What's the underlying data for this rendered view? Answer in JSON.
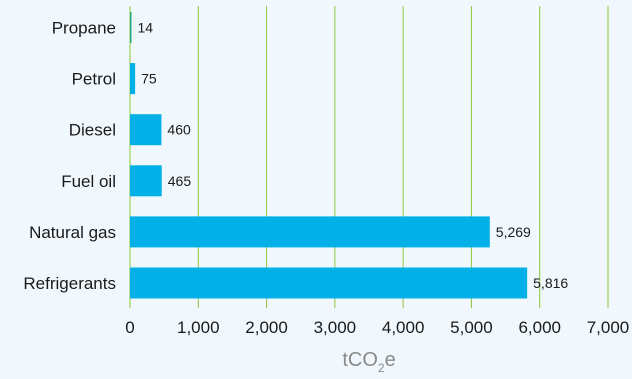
{
  "chart_data": {
    "type": "bar",
    "orientation": "horizontal",
    "categories": [
      "Propane",
      "Petrol",
      "Diesel",
      "Fuel oil",
      "Natural gas",
      "Refrigerants"
    ],
    "values": [
      14,
      75,
      460,
      465,
      5269,
      5816
    ],
    "value_labels": [
      "14",
      "75",
      "460",
      "465",
      "5,269",
      "5,816"
    ],
    "xlim": [
      0,
      7000
    ],
    "x_ticks": [
      0,
      1000,
      2000,
      3000,
      4000,
      5000,
      6000,
      7000
    ],
    "x_tick_labels": [
      "0",
      "1,000",
      "2,000",
      "3,000",
      "4,000",
      "5,000",
      "6,000",
      "7,000"
    ],
    "xlabel": {
      "main": "tCO",
      "subscript": "2",
      "suffix": "e"
    },
    "grid": "vertical",
    "colors": {
      "bar": "#00b0e6",
      "first_bar": "#1fa88a",
      "grid": "#8cc63f",
      "axis_title": "#8a8a8a",
      "background": "#f1f8fd"
    }
  }
}
